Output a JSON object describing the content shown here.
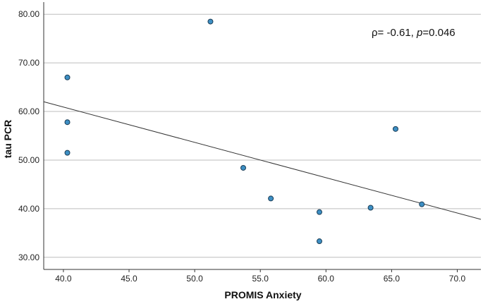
{
  "chart_data": {
    "type": "scatter",
    "title": "",
    "xlabel": "PROMIS Anxiety",
    "ylabel": "tau PCR",
    "xlim": [
      38.5,
      71.8
    ],
    "ylim": [
      27.5,
      82.5
    ],
    "xticks": [
      "40.0",
      "45.0",
      "50.0",
      "55.0",
      "60.0",
      "65.0",
      "70.0"
    ],
    "xtick_values": [
      40,
      45,
      50,
      55,
      60,
      65,
      70
    ],
    "yticks": [
      "30.00",
      "40.00",
      "50.00",
      "60.00",
      "70.00",
      "80.00"
    ],
    "ytick_values": [
      30,
      40,
      50,
      60,
      70,
      80
    ],
    "grid": "horizontal",
    "points": [
      {
        "x": 40.3,
        "y": 67.0
      },
      {
        "x": 40.3,
        "y": 57.8
      },
      {
        "x": 40.3,
        "y": 51.5
      },
      {
        "x": 51.2,
        "y": 78.5
      },
      {
        "x": 53.7,
        "y": 48.4
      },
      {
        "x": 55.8,
        "y": 42.1
      },
      {
        "x": 59.5,
        "y": 39.3
      },
      {
        "x": 59.5,
        "y": 33.3
      },
      {
        "x": 63.4,
        "y": 40.2
      },
      {
        "x": 65.3,
        "y": 56.4
      },
      {
        "x": 67.3,
        "y": 40.9
      }
    ],
    "fit_line": {
      "x": [
        38.5,
        71.8
      ],
      "y": [
        62.0,
        37.8
      ]
    },
    "annotation": {
      "rho_symbol": "ρ",
      "rho_text": "= -0.61, ",
      "p_symbol": "p",
      "p_text": "=0.046"
    },
    "colors": {
      "point_fill": "#3d8fc4",
      "point_stroke": "#1a3c55",
      "line": "#333333",
      "grid": "#bdbdbd",
      "axis": "#333333"
    }
  }
}
